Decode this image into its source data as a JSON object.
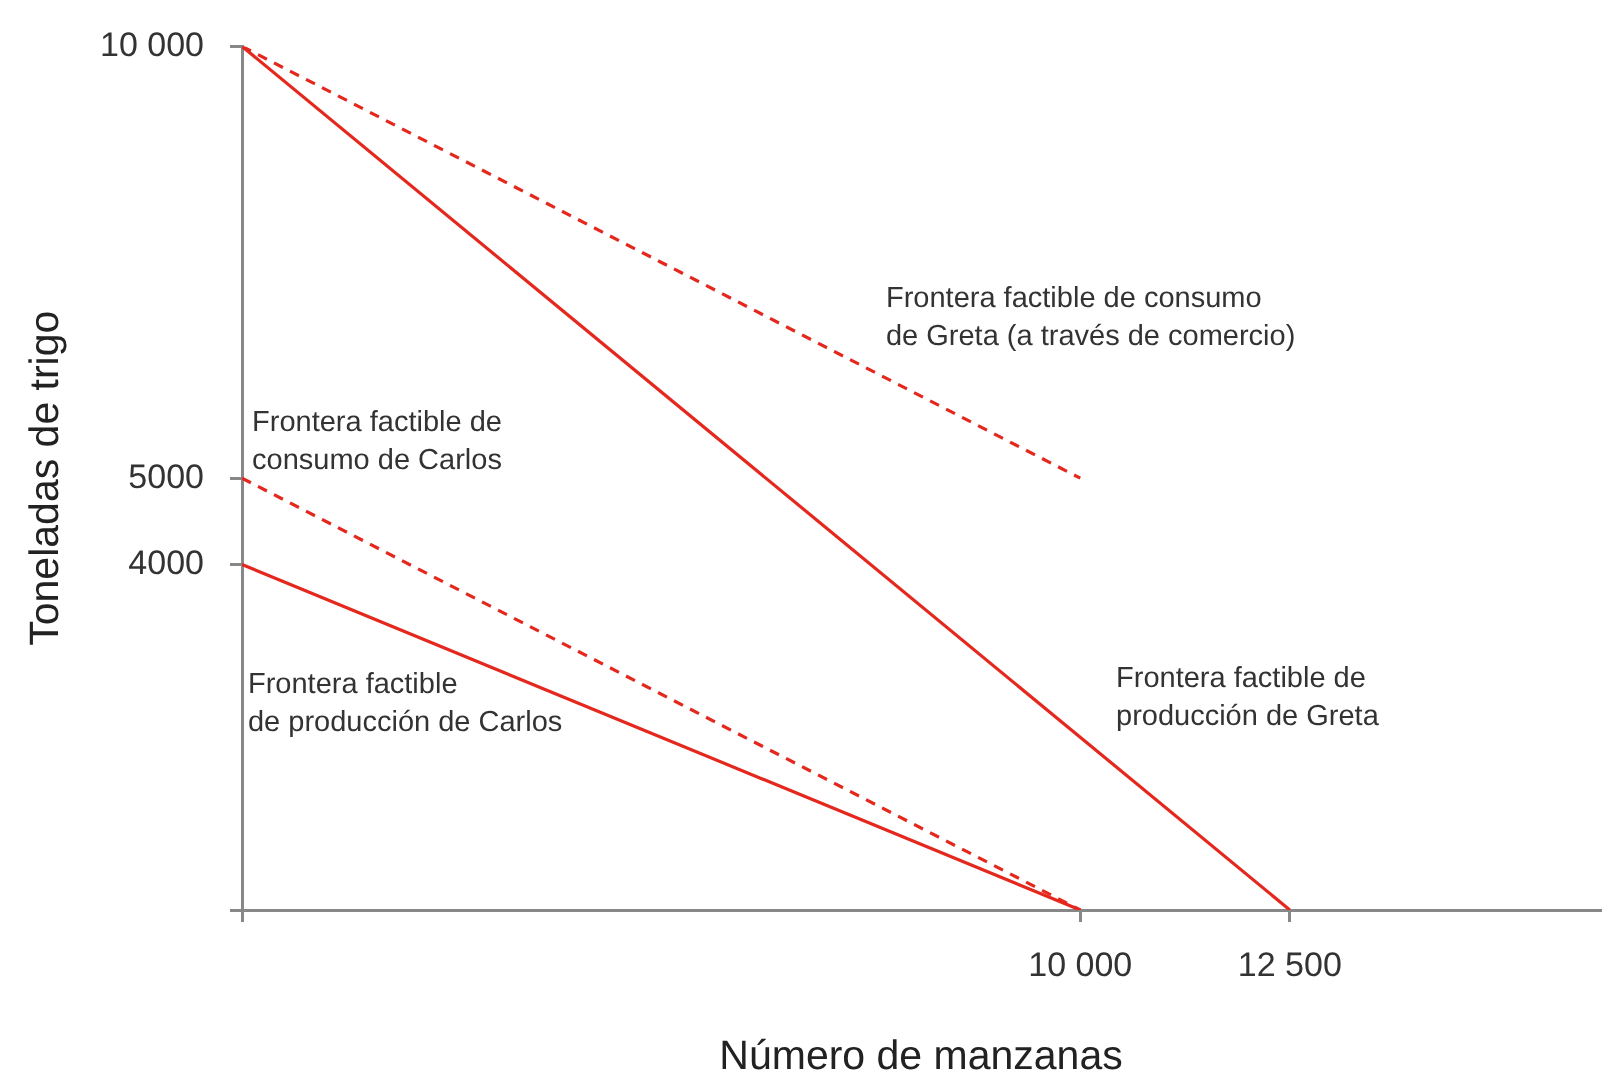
{
  "chart_data": {
    "type": "line",
    "xlabel": "Número de manzanas",
    "ylabel": "Toneladas de trigo",
    "xlim": [
      0,
      16200
    ],
    "ylim": [
      0,
      10000
    ],
    "xticks": [
      {
        "value": 0,
        "label": null
      },
      {
        "value": 10000,
        "label": "10 000"
      },
      {
        "value": 12500,
        "label": "12 500"
      }
    ],
    "yticks": [
      {
        "value": 0,
        "label": null
      },
      4000,
      5000,
      {
        "value": 10000,
        "label": "10 000"
      }
    ],
    "marker": "none",
    "series": [
      {
        "name": "Frontera factible de\nproducción de Greta",
        "color": "#e4281e",
        "line_style": "solid",
        "x": [
          0,
          12500
        ],
        "values": [
          10000,
          0
        ]
      },
      {
        "name": "Frontera factible de consumo\nde Greta (a través de comercio)",
        "color": "#e4281e",
        "line_style": "dashed",
        "x": [
          0,
          10000
        ],
        "values": [
          10000,
          5000
        ]
      },
      {
        "name": "Frontera factible de\nconsumo de Carlos",
        "color": "#e4281e",
        "line_style": "dashed",
        "x": [
          0,
          10000
        ],
        "values": [
          5000,
          0
        ]
      },
      {
        "name": "Frontera factible\nde producción de Carlos",
        "color": "#e4281e",
        "line_style": "solid",
        "x": [
          0,
          10000
        ],
        "values": [
          4000,
          0
        ]
      }
    ]
  }
}
